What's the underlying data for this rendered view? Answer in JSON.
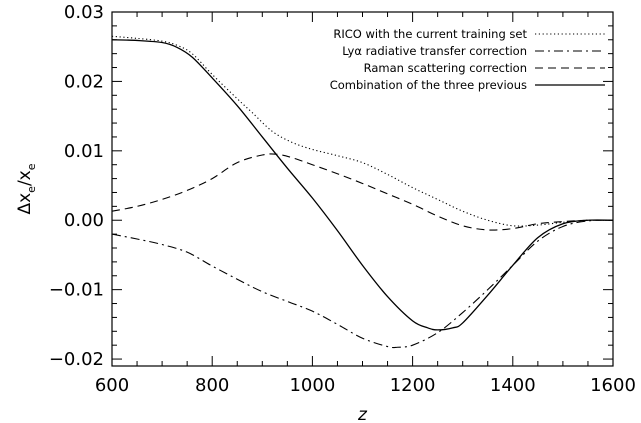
{
  "chart_data": {
    "type": "line",
    "xlabel": "z",
    "ylabel": "Δx",
    "ylabel_subscript": "e",
    "ylabel_denominator": "x",
    "xlim": [
      600,
      1600
    ],
    "ylim": [
      -0.021,
      0.03
    ],
    "xticks": [
      600,
      800,
      1000,
      1200,
      1400,
      1600
    ],
    "xtick_labels": [
      "600",
      "800",
      "1000",
      "1200",
      "1400",
      "1600"
    ],
    "yticks": [
      -0.02,
      -0.01,
      0.0,
      0.01,
      0.02,
      0.03
    ],
    "ytick_labels": [
      "−0.02",
      "−0.01",
      "0.00",
      "0.01",
      "0.02",
      "0.03"
    ],
    "grid": false,
    "legend_position": "top-right",
    "series": [
      {
        "name": "RICO with the current training set",
        "style": "dotted",
        "color": "#000000",
        "x": [
          600,
          650,
          700,
          730,
          760,
          800,
          850,
          880,
          920,
          960,
          1000,
          1050,
          1100,
          1150,
          1200,
          1250,
          1300,
          1350,
          1400,
          1450,
          1500,
          1550,
          1600
        ],
        "y": [
          0.0265,
          0.0262,
          0.0258,
          0.0252,
          0.024,
          0.021,
          0.0175,
          0.0155,
          0.0128,
          0.0112,
          0.0102,
          0.0093,
          0.0083,
          0.0066,
          0.0047,
          0.003,
          0.0013,
          0.0,
          -0.0008,
          -0.0007,
          -0.0003,
          0.0,
          0.0
        ]
      },
      {
        "name": "Lyα radiative transfer correction",
        "style": "dashdot",
        "color": "#000000",
        "x": [
          600,
          650,
          700,
          750,
          800,
          850,
          900,
          950,
          1000,
          1050,
          1100,
          1150,
          1170,
          1200,
          1250,
          1300,
          1350,
          1400,
          1450,
          1500,
          1550,
          1600
        ],
        "y": [
          -0.002,
          -0.0027,
          -0.0035,
          -0.0046,
          -0.0066,
          -0.0085,
          -0.0103,
          -0.0117,
          -0.0131,
          -0.015,
          -0.017,
          -0.0182,
          -0.0183,
          -0.018,
          -0.0162,
          -0.0133,
          -0.01,
          -0.0065,
          -0.003,
          -0.0009,
          -0.0001,
          0.0
        ]
      },
      {
        "name": "Raman scattering correction",
        "style": "dashed",
        "color": "#000000",
        "x": [
          600,
          650,
          700,
          750,
          800,
          850,
          900,
          930,
          960,
          1000,
          1050,
          1100,
          1150,
          1200,
          1250,
          1300,
          1350,
          1400,
          1450,
          1500,
          1550,
          1600
        ],
        "y": [
          0.0013,
          0.002,
          0.003,
          0.0043,
          0.006,
          0.0083,
          0.0094,
          0.0095,
          0.009,
          0.008,
          0.0067,
          0.0053,
          0.0038,
          0.0023,
          0.0006,
          -0.0008,
          -0.0014,
          -0.0012,
          -0.0005,
          -0.0002,
          0.0,
          0.0
        ]
      },
      {
        "name": "Combination of the three previous",
        "style": "solid",
        "color": "#000000",
        "x": [
          600,
          650,
          700,
          730,
          760,
          800,
          850,
          900,
          950,
          1000,
          1050,
          1100,
          1150,
          1200,
          1230,
          1250,
          1280,
          1300,
          1350,
          1400,
          1450,
          1500,
          1550,
          1600
        ],
        "y": [
          0.026,
          0.0259,
          0.0256,
          0.0249,
          0.0235,
          0.0205,
          0.0165,
          0.012,
          0.0075,
          0.0032,
          -0.0015,
          -0.0065,
          -0.011,
          -0.0145,
          -0.0155,
          -0.0158,
          -0.0155,
          -0.0148,
          -0.0108,
          -0.0065,
          -0.0025,
          -0.0005,
          0.0,
          0.0
        ]
      }
    ]
  }
}
